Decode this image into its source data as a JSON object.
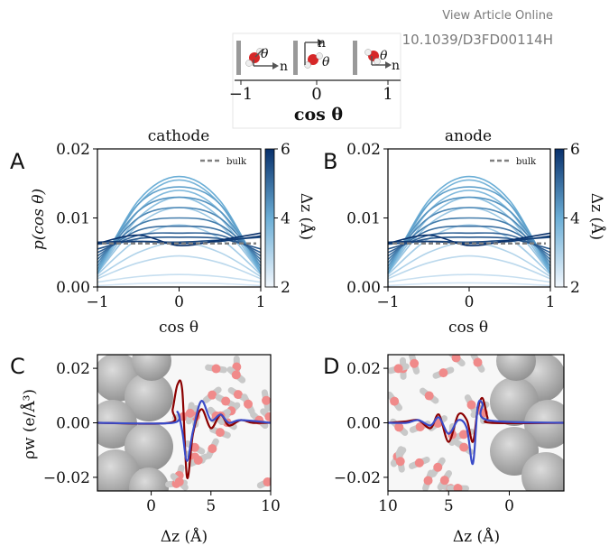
{
  "header": {
    "view_online": "View Article Online",
    "doi": "DOI: 10.1039/D3FD00114H"
  },
  "inset": {
    "ticks": [
      "−1",
      "0",
      "1"
    ],
    "xlabel": "cos θ",
    "vector_label": "n",
    "angle_label": "θ"
  },
  "chart_data": [
    {
      "panel": "A",
      "type": "line",
      "title": "cathode",
      "xlabel": "cos θ",
      "ylabel": "p(cos θ)",
      "xlim": [
        -1,
        1
      ],
      "ylim": [
        0,
        0.02
      ],
      "xticks": [
        "−1",
        "0",
        "1"
      ],
      "yticks": [
        "0.00",
        "0.01",
        "0.02"
      ],
      "legend": {
        "entries": [
          "bulk"
        ],
        "position": "top-right"
      },
      "colorbar": {
        "label": "Δz (Å)",
        "range": [
          2,
          6
        ],
        "ticks": [
          "2",
          "4",
          "6"
        ]
      },
      "series": [
        {
          "dz": 2.2,
          "x": [
            -1,
            -0.5,
            0,
            0.5,
            1
          ],
          "values": [
            0.0002,
            0.0005,
            0.0006,
            0.0005,
            0.0002
          ]
        },
        {
          "dz": 2.4,
          "x": [
            -1,
            -0.5,
            0,
            0.5,
            1
          ],
          "values": [
            0.0007,
            0.0015,
            0.0018,
            0.0015,
            0.0007
          ]
        },
        {
          "dz": 2.6,
          "x": [
            -1,
            -0.5,
            0,
            0.5,
            1
          ],
          "values": [
            0.0012,
            0.0035,
            0.0045,
            0.0035,
            0.0012
          ]
        },
        {
          "dz": 2.8,
          "x": [
            -1,
            -0.5,
            0,
            0.5,
            1
          ],
          "values": [
            0.0015,
            0.005,
            0.0065,
            0.005,
            0.0015
          ]
        },
        {
          "dz": 3.0,
          "x": [
            -1,
            -0.5,
            0,
            0.5,
            1
          ],
          "values": [
            0.0018,
            0.007,
            0.009,
            0.007,
            0.0018
          ]
        },
        {
          "dz": 3.2,
          "x": [
            -1,
            -0.5,
            0,
            0.5,
            1
          ],
          "values": [
            0.002,
            0.009,
            0.0115,
            0.009,
            0.002
          ]
        },
        {
          "dz": 3.4,
          "x": [
            -1,
            -0.5,
            0,
            0.5,
            1
          ],
          "values": [
            0.002,
            0.01,
            0.013,
            0.01,
            0.002
          ]
        },
        {
          "dz": 3.6,
          "x": [
            -1,
            -0.5,
            0,
            0.5,
            1
          ],
          "values": [
            0.002,
            0.011,
            0.014,
            0.011,
            0.002
          ]
        },
        {
          "dz": 3.8,
          "x": [
            -1,
            -0.5,
            0,
            0.5,
            1
          ],
          "values": [
            0.002,
            0.012,
            0.0155,
            0.012,
            0.002
          ]
        },
        {
          "dz": 4.0,
          "x": [
            -1,
            -0.5,
            0,
            0.5,
            1
          ],
          "values": [
            0.002,
            0.0125,
            0.016,
            0.0125,
            0.002
          ]
        },
        {
          "dz": 4.2,
          "x": [
            -1,
            -0.5,
            0,
            0.5,
            1
          ],
          "values": [
            0.0025,
            0.012,
            0.0145,
            0.012,
            0.0025
          ]
        },
        {
          "dz": 4.4,
          "x": [
            -1,
            -0.5,
            0,
            0.5,
            1
          ],
          "values": [
            0.003,
            0.011,
            0.013,
            0.011,
            0.003
          ]
        },
        {
          "dz": 4.6,
          "x": [
            -1,
            -0.5,
            0,
            0.5,
            1
          ],
          "values": [
            0.0035,
            0.01,
            0.0115,
            0.01,
            0.0035
          ]
        },
        {
          "dz": 4.8,
          "x": [
            -1,
            -0.5,
            0,
            0.5,
            1
          ],
          "values": [
            0.004,
            0.009,
            0.01,
            0.009,
            0.004
          ]
        },
        {
          "dz": 5.0,
          "x": [
            -1,
            -0.5,
            0,
            0.5,
            1
          ],
          "values": [
            0.0045,
            0.0082,
            0.0088,
            0.0082,
            0.0045
          ]
        },
        {
          "dz": 5.2,
          "x": [
            -1,
            -0.5,
            0,
            0.5,
            1
          ],
          "values": [
            0.005,
            0.0075,
            0.0078,
            0.0075,
            0.005
          ]
        },
        {
          "dz": 5.4,
          "x": [
            -1,
            -0.5,
            0,
            0.5,
            1
          ],
          "values": [
            0.0055,
            0.007,
            0.0072,
            0.007,
            0.0055
          ]
        },
        {
          "dz": 5.6,
          "x": [
            -1,
            -0.5,
            0,
            0.5,
            1
          ],
          "values": [
            0.0062,
            0.0066,
            0.0065,
            0.0068,
            0.0072
          ]
        },
        {
          "dz": 5.8,
          "x": [
            -1,
            -0.5,
            0,
            0.5,
            1
          ],
          "values": [
            0.0065,
            0.0066,
            0.0063,
            0.0066,
            0.0074
          ]
        },
        {
          "dz": 6.0,
          "x": [
            -1,
            -0.5,
            0,
            0.5,
            1
          ],
          "values": [
            0.0063,
            0.0075,
            0.006,
            0.0068,
            0.0078
          ]
        }
      ],
      "bulk": {
        "name": "bulk",
        "value": 0.0063
      }
    },
    {
      "panel": "B",
      "type": "line",
      "title": "anode",
      "xlabel": "cos θ",
      "ylabel": "",
      "xlim": [
        -1,
        1
      ],
      "ylim": [
        0,
        0.02
      ],
      "xticks": [
        "−1",
        "0",
        "1"
      ],
      "yticks": [
        "0.00",
        "0.01",
        "0.02"
      ],
      "legend": {
        "entries": [
          "bulk"
        ],
        "position": "top-right"
      },
      "colorbar": {
        "label": "Δz (Å)",
        "range": [
          2,
          6
        ],
        "ticks": [
          "2",
          "4",
          "6"
        ]
      },
      "series": [
        {
          "dz": 2.2,
          "x": [
            -1,
            -0.5,
            0,
            0.5,
            1
          ],
          "values": [
            0.0002,
            0.0005,
            0.0006,
            0.0005,
            0.0002
          ]
        },
        {
          "dz": 2.4,
          "x": [
            -1,
            -0.5,
            0,
            0.5,
            1
          ],
          "values": [
            0.0007,
            0.0015,
            0.0018,
            0.0015,
            0.0007
          ]
        },
        {
          "dz": 2.6,
          "x": [
            -1,
            -0.5,
            0,
            0.5,
            1
          ],
          "values": [
            0.0012,
            0.0035,
            0.0045,
            0.0035,
            0.0012
          ]
        },
        {
          "dz": 2.8,
          "x": [
            -1,
            -0.5,
            0,
            0.5,
            1
          ],
          "values": [
            0.0015,
            0.005,
            0.0065,
            0.005,
            0.0015
          ]
        },
        {
          "dz": 3.0,
          "x": [
            -1,
            -0.5,
            0,
            0.5,
            1
          ],
          "values": [
            0.0018,
            0.007,
            0.009,
            0.007,
            0.0018
          ]
        },
        {
          "dz": 3.2,
          "x": [
            -1,
            -0.5,
            0,
            0.5,
            1
          ],
          "values": [
            0.002,
            0.009,
            0.0115,
            0.009,
            0.002
          ]
        },
        {
          "dz": 3.4,
          "x": [
            -1,
            -0.5,
            0,
            0.5,
            1
          ],
          "values": [
            0.002,
            0.01,
            0.013,
            0.01,
            0.002
          ]
        },
        {
          "dz": 3.6,
          "x": [
            -1,
            -0.5,
            0,
            0.5,
            1
          ],
          "values": [
            0.002,
            0.011,
            0.014,
            0.011,
            0.002
          ]
        },
        {
          "dz": 3.8,
          "x": [
            -1,
            -0.5,
            0,
            0.5,
            1
          ],
          "values": [
            0.002,
            0.012,
            0.0155,
            0.012,
            0.002
          ]
        },
        {
          "dz": 4.0,
          "x": [
            -1,
            -0.5,
            0,
            0.5,
            1
          ],
          "values": [
            0.002,
            0.0125,
            0.016,
            0.0125,
            0.002
          ]
        },
        {
          "dz": 4.2,
          "x": [
            -1,
            -0.5,
            0,
            0.5,
            1
          ],
          "values": [
            0.0025,
            0.012,
            0.0145,
            0.012,
            0.0025
          ]
        },
        {
          "dz": 4.4,
          "x": [
            -1,
            -0.5,
            0,
            0.5,
            1
          ],
          "values": [
            0.003,
            0.011,
            0.013,
            0.011,
            0.003
          ]
        },
        {
          "dz": 4.6,
          "x": [
            -1,
            -0.5,
            0,
            0.5,
            1
          ],
          "values": [
            0.0035,
            0.01,
            0.0115,
            0.01,
            0.0035
          ]
        },
        {
          "dz": 4.8,
          "x": [
            -1,
            -0.5,
            0,
            0.5,
            1
          ],
          "values": [
            0.004,
            0.009,
            0.01,
            0.009,
            0.004
          ]
        },
        {
          "dz": 5.0,
          "x": [
            -1,
            -0.5,
            0,
            0.5,
            1
          ],
          "values": [
            0.0045,
            0.0082,
            0.0088,
            0.0082,
            0.0045
          ]
        },
        {
          "dz": 5.2,
          "x": [
            -1,
            -0.5,
            0,
            0.5,
            1
          ],
          "values": [
            0.005,
            0.0075,
            0.0078,
            0.0075,
            0.005
          ]
        },
        {
          "dz": 5.4,
          "x": [
            -1,
            -0.5,
            0,
            0.5,
            1
          ],
          "values": [
            0.0055,
            0.007,
            0.0072,
            0.007,
            0.0055
          ]
        },
        {
          "dz": 5.6,
          "x": [
            -1,
            -0.5,
            0,
            0.5,
            1
          ],
          "values": [
            0.0062,
            0.0066,
            0.0065,
            0.0068,
            0.0072
          ]
        },
        {
          "dz": 5.8,
          "x": [
            -1,
            -0.5,
            0,
            0.5,
            1
          ],
          "values": [
            0.0065,
            0.0066,
            0.0063,
            0.0066,
            0.0074
          ]
        },
        {
          "dz": 6.0,
          "x": [
            -1,
            -0.5,
            0,
            0.5,
            1
          ],
          "values": [
            0.0063,
            0.0075,
            0.006,
            0.0068,
            0.0078
          ]
        }
      ],
      "bulk": {
        "name": "bulk",
        "value": 0.0063
      }
    },
    {
      "panel": "C",
      "type": "line",
      "title": "",
      "xlabel": "Δz (Å)",
      "ylabel": "ρw (e/Å³)",
      "xlim": [
        -4.5,
        10
      ],
      "ylim": [
        -0.025,
        0.025
      ],
      "xticks": [
        "0",
        "5",
        "10"
      ],
      "yticks": [
        "0.02",
        "0.00",
        "−0.02"
      ],
      "series": [
        {
          "color": "#8b0000",
          "x": [
            -4.5,
            1.5,
            1.8,
            2.2,
            2.6,
            3.0,
            3.5,
            4.2,
            5.0,
            5.8,
            6.5,
            7.5,
            8.5,
            10
          ],
          "values": [
            0,
            0,
            0.005,
            0.014,
            0.012,
            -0.02,
            -0.004,
            0.005,
            -0.002,
            0.003,
            -0.001,
            0.001,
            0,
            0
          ]
        },
        {
          "color": "#3a4bc8",
          "x": [
            -4.5,
            1.8,
            2.2,
            2.6,
            3.0,
            3.5,
            4.2,
            5.0,
            5.8,
            6.5,
            7.5,
            10
          ],
          "values": [
            0,
            0,
            0.004,
            -0.003,
            -0.014,
            -0.003,
            0.008,
            0.001,
            0.003,
            0,
            0.001,
            0
          ]
        }
      ]
    },
    {
      "panel": "D",
      "type": "line",
      "title": "",
      "xlabel": "Δz (Å)",
      "ylabel": "",
      "xlim": [
        10,
        -4.5
      ],
      "ylim": [
        -0.025,
        0.025
      ],
      "xticks": [
        "10",
        "5",
        "0"
      ],
      "yticks": [
        "0.02",
        "0.00",
        "−0.02"
      ],
      "series": [
        {
          "color": "#8b0000",
          "x": [
            10,
            8.5,
            7.5,
            6.5,
            5.8,
            5.0,
            4.2,
            3.5,
            3.0,
            2.6,
            2.2,
            1.8,
            1.5,
            -4.5
          ],
          "values": [
            0,
            0.0005,
            0.001,
            -0.002,
            0.003,
            -0.007,
            0.003,
            0.001,
            -0.007,
            0.005,
            0.009,
            0.002,
            0,
            0
          ]
        },
        {
          "color": "#3a4bc8",
          "x": [
            10,
            8.5,
            7.5,
            6.5,
            5.8,
            5.0,
            4.2,
            3.5,
            3.0,
            2.6,
            2.2,
            1.8,
            -4.5
          ],
          "values": [
            0,
            0,
            0.001,
            -0.001,
            0.002,
            -0.004,
            0.001,
            -0.002,
            -0.015,
            0.006,
            0.007,
            0.001,
            0
          ]
        }
      ]
    }
  ],
  "panels": {
    "A": {
      "letter": "A",
      "title": "cathode",
      "xlabel": "cos θ",
      "ylabel": "p(cos θ)",
      "legend": "bulk",
      "cbar_label": "Δz (Å)"
    },
    "B": {
      "letter": "B",
      "title": "anode",
      "xlabel": "cos θ",
      "legend": "bulk",
      "cbar_label": "Δz (Å)"
    },
    "C": {
      "letter": "C",
      "xlabel": "Δz (Å)",
      "ylabel": "ρw (e/Å³)"
    },
    "D": {
      "letter": "D",
      "xlabel": "Δz (Å)"
    }
  },
  "colors": {
    "dark_blue": "#08306b",
    "light_blue": "#deebf7",
    "bulk": "#808080",
    "red_series": "#8b0000",
    "blue_series": "#3a4bc8"
  }
}
